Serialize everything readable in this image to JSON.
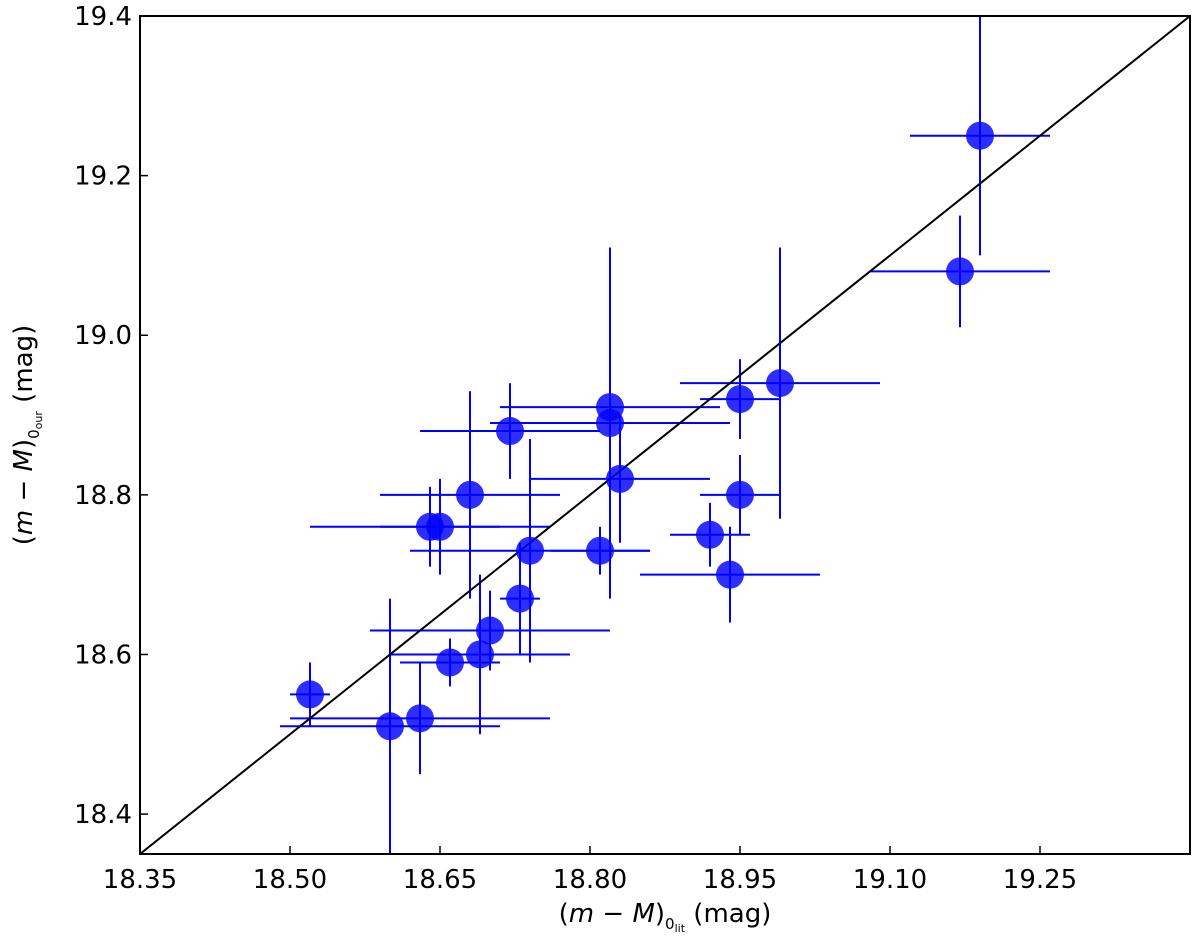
{
  "chart_data": {
    "type": "scatter",
    "title": "",
    "xlabel": {
      "pre": "(",
      "italic_m": "m",
      "minus": " − ",
      "italic_M": "M",
      "close": ")",
      "sub0": "0",
      "subsub": "lit",
      "unit": " (mag)"
    },
    "ylabel": {
      "pre": "(",
      "italic_m": "m",
      "minus": " − ",
      "italic_M": "M",
      "close": ")",
      "sub0": "0",
      "subsub": "our",
      "unit": " (mag)"
    },
    "xlim": [
      18.35,
      19.4
    ],
    "ylim": [
      18.35,
      19.4
    ],
    "x_ticks": [
      "18.35",
      "18.50",
      "18.65",
      "18.80",
      "18.95",
      "19.10",
      "19.25"
    ],
    "y_ticks": [
      "18.4",
      "18.6",
      "18.8",
      "19.0",
      "19.2",
      "19.4"
    ],
    "grid": false,
    "reference_line": "y = x",
    "point_color": "#0000ff",
    "line_color": "#000000",
    "points": [
      {
        "x": 19.19,
        "y": 19.25,
        "xerr": 0.07,
        "yerr": 0.15
      },
      {
        "x": 19.17,
        "y": 19.08,
        "xerr": 0.09,
        "yerr": 0.07
      },
      {
        "x": 18.99,
        "y": 18.94,
        "xerr": 0.1,
        "yerr": 0.17
      },
      {
        "x": 18.95,
        "y": 18.92,
        "xerr": 0.04,
        "yerr": 0.05
      },
      {
        "x": 18.95,
        "y": 18.8,
        "xerr": 0.04,
        "yerr": 0.05
      },
      {
        "x": 18.92,
        "y": 18.75,
        "xerr": 0.04,
        "yerr": 0.04
      },
      {
        "x": 18.94,
        "y": 18.7,
        "xerr": 0.09,
        "yerr": 0.06
      },
      {
        "x": 18.82,
        "y": 18.91,
        "xerr": 0.11,
        "yerr": 0.05
      },
      {
        "x": 18.82,
        "y": 18.89,
        "xerr": 0.12,
        "yerr": 0.22
      },
      {
        "x": 18.83,
        "y": 18.82,
        "xerr": 0.09,
        "yerr": 0.08
      },
      {
        "x": 18.81,
        "y": 18.73,
        "xerr": 0.05,
        "yerr": 0.03
      },
      {
        "x": 18.74,
        "y": 18.73,
        "xerr": 0.12,
        "yerr": 0.14
      },
      {
        "x": 18.73,
        "y": 18.67,
        "xerr": 0.02,
        "yerr": 0.07
      },
      {
        "x": 18.72,
        "y": 18.88,
        "xerr": 0.09,
        "yerr": 0.06
      },
      {
        "x": 18.68,
        "y": 18.8,
        "xerr": 0.09,
        "yerr": 0.13
      },
      {
        "x": 18.64,
        "y": 18.76,
        "xerr": 0.12,
        "yerr": 0.05
      },
      {
        "x": 18.65,
        "y": 18.76,
        "xerr": 0.06,
        "yerr": 0.06
      },
      {
        "x": 18.66,
        "y": 18.59,
        "xerr": 0.05,
        "yerr": 0.03
      },
      {
        "x": 18.7,
        "y": 18.63,
        "xerr": 0.12,
        "yerr": 0.05
      },
      {
        "x": 18.69,
        "y": 18.6,
        "xerr": 0.09,
        "yerr": 0.1
      },
      {
        "x": 18.52,
        "y": 18.55,
        "xerr": 0.02,
        "yerr": 0.04
      },
      {
        "x": 18.6,
        "y": 18.51,
        "xerr": 0.11,
        "yerr": 0.16
      },
      {
        "x": 18.63,
        "y": 18.52,
        "xerr": 0.13,
        "yerr": 0.07
      }
    ]
  }
}
